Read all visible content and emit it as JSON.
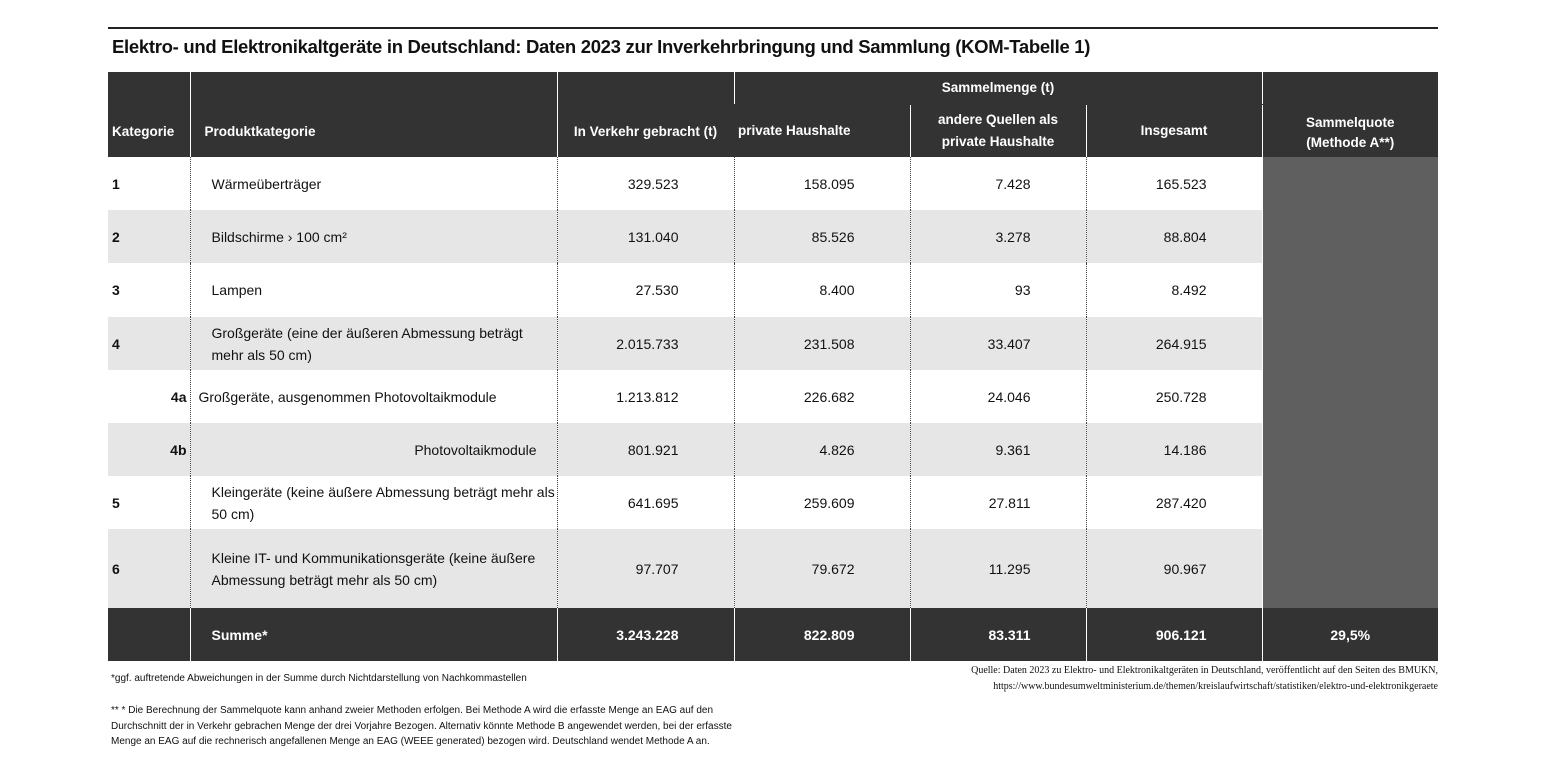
{
  "title": "Elektro- und Elektronikaltgeräte in Deutschland: Daten 2023 zur Inverkehrbringung und Sammlung (KOM-Tabelle 1)",
  "headers": {
    "kategorie": "Kategorie",
    "produktkategorie": "Produktkategorie",
    "in_verkehr": "In Verkehr gebracht (t)",
    "sammelmenge": "Sammelmenge (t)",
    "private": "private Haushalte",
    "andere": "andere Quellen als private Haushalte",
    "insgesamt": "Insgesamt",
    "sammelquote": "Sammelquote (Methode A**)"
  },
  "rows": [
    {
      "kat": "1",
      "name": "Wärmeüberträger",
      "in_verkehr": "329.523",
      "private": "158.095",
      "andere": "7.428",
      "insgesamt": "165.523"
    },
    {
      "kat": "2",
      "name": "Bildschirme › 100 cm²",
      "in_verkehr": "131.040",
      "private": "85.526",
      "andere": "3.278",
      "insgesamt": "88.804"
    },
    {
      "kat": "3",
      "name": "Lampen",
      "in_verkehr": "27.530",
      "private": "8.400",
      "andere": "93",
      "insgesamt": "8.492"
    },
    {
      "kat": "4",
      "name": "Großgeräte (eine der äußeren Abmessung beträgt mehr als 50 cm)",
      "in_verkehr": "2.015.733",
      "private": "231.508",
      "andere": "33.407",
      "insgesamt": "264.915"
    },
    {
      "kat": "4a",
      "name": "Großgeräte, ausgenommen Photovoltaikmodule",
      "in_verkehr": "1.213.812",
      "private": "226.682",
      "andere": "24.046",
      "insgesamt": "250.728"
    },
    {
      "kat": "4b",
      "name": "Photovoltaikmodule",
      "in_verkehr": "801.921",
      "private": "4.826",
      "andere": "9.361",
      "insgesamt": "14.186"
    },
    {
      "kat": "5",
      "name": "Kleingeräte (keine äußere Abmessung beträgt mehr als 50 cm)",
      "in_verkehr": "641.695",
      "private": "259.609",
      "andere": "27.811",
      "insgesamt": "287.420"
    },
    {
      "kat": "6",
      "name": "Kleine IT- und Kommunikationsgeräte (keine äußere Abmessung beträgt mehr als 50 cm)",
      "in_verkehr": "97.707",
      "private": "79.672",
      "andere": "11.295",
      "insgesamt": "90.967"
    }
  ],
  "sum": {
    "label": "Summe*",
    "in_verkehr": "3.243.228",
    "private": "822.809",
    "andere": "83.311",
    "insgesamt": "906.121",
    "quote": "29,5%"
  },
  "footnote1": "*ggf. auftretende Abweichungen in der Summe durch Nichtdarstellung von Nachkommastellen",
  "footnote2": "** * Die Berechnung der Sammelquote kann anhand zweier Methoden erfolgen. Bei Methode A wird die erfasste Menge an EAG auf den Durchschnitt der in Verkehr gebrachen Menge der drei Vorjahre Bezogen. Alternativ könnte Methode B angewendet werden, bei der erfasste Menge an EAG auf die rechnerisch angefallenen Menge an EAG (WEEE generated) bezogen wird. Deutschland wendet Methode A an.",
  "source_line1": "Quelle: Daten 2023 zu Elektro- und Elektronikaltgeräten in Deutschland, veröffentlicht auf den Seiten des BMUKN,",
  "source_line2": "https://www.bundesumweltministerium.de/themen/kreislaufwirtschaft/statistiken/elektro-und-elektronikgeraete",
  "colors": {
    "header": "#333333",
    "alt_row": "#e6e6e6",
    "quote_column": "#5f5f5f"
  }
}
